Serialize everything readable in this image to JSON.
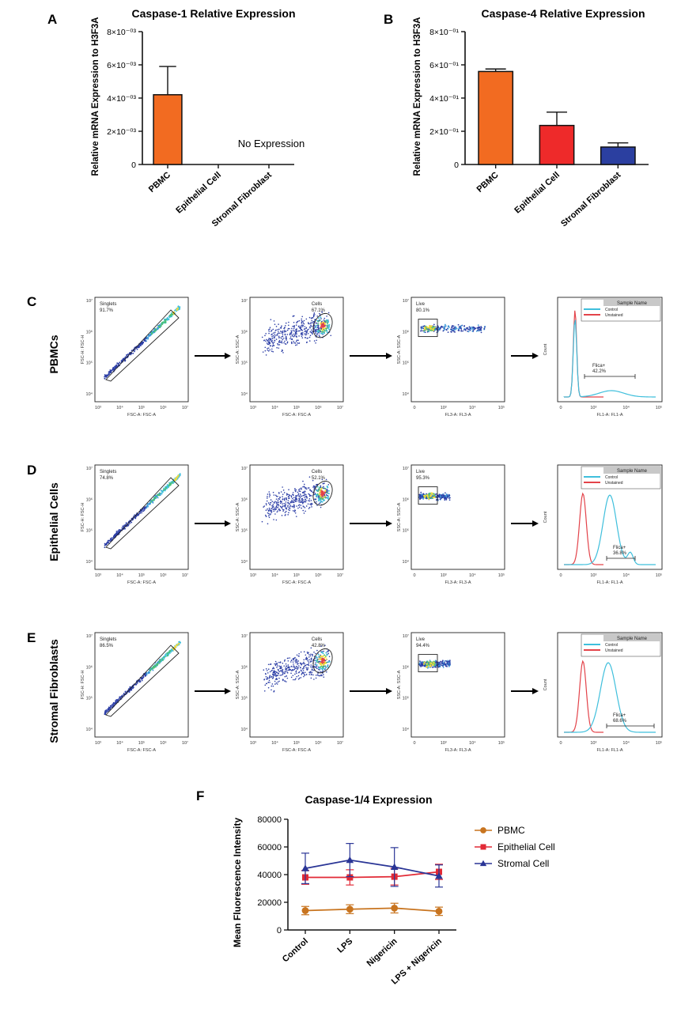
{
  "panel_letters": {
    "A": "A",
    "B": "B",
    "C": "C",
    "D": "D",
    "E": "E",
    "F": "F"
  },
  "colors": {
    "pbmc_bar": "#f26b21",
    "epithelial_bar": "#ee2a2a",
    "stromal_bar": "#2b3fa0",
    "pbmc_line": "#c8741f",
    "epithelial_line": "#e22a36",
    "stromal_line": "#2a3596",
    "control_hist": "#3fbfdc",
    "unstained_hist": "#e3434a",
    "scatter_blue": "#2c3ea6",
    "gate": "#222222"
  },
  "chart_data": [
    {
      "id": "A",
      "type": "bar",
      "title": "Caspase-1 Relative Expression",
      "ylabel": "Relative mRNA Expression to H3F3A",
      "xlabel": "",
      "categories": [
        "PBMC",
        "Epithelial Cell",
        "Stromal Fibroblast"
      ],
      "values": [
        0.0042,
        0,
        0
      ],
      "errors": [
        0.0017,
        0,
        0
      ],
      "ylim": [
        0,
        0.008
      ],
      "yticks": [
        0,
        0.002,
        0.004,
        0.006,
        0.008
      ],
      "ytick_labels": [
        "0",
        "2×10⁻⁰³",
        "4×10⁻⁰³",
        "6×10⁻⁰³",
        "8×10⁻⁰³"
      ],
      "annotation": "No Expression"
    },
    {
      "id": "B",
      "type": "bar",
      "title": "Caspase-4 Relative Expression",
      "ylabel": "Relative mRNA Expression to H3F3A",
      "xlabel": "",
      "categories": [
        "PBMC",
        "Epithelial Cell",
        "Stromal Fibroblast"
      ],
      "values": [
        0.56,
        0.235,
        0.105
      ],
      "errors": [
        0.015,
        0.08,
        0.025
      ],
      "ylim": [
        0,
        0.8
      ],
      "yticks": [
        0,
        0.2,
        0.4,
        0.6,
        0.8
      ],
      "ytick_labels": [
        "0",
        "2×10⁻⁰¹",
        "4×10⁻⁰¹",
        "6×10⁻⁰¹",
        "8×10⁻⁰¹"
      ]
    },
    {
      "id": "F",
      "type": "line",
      "title": "Caspase-1/4 Expression",
      "ylabel": "Mean Fluorescence Intensity",
      "xlabel": "",
      "categories": [
        "Control",
        "LPS",
        "Nigericin",
        "LPS + Nigericin"
      ],
      "ylim": [
        0,
        80000
      ],
      "yticks": [
        0,
        20000,
        40000,
        60000,
        80000
      ],
      "series": [
        {
          "name": "PBMC",
          "marker": "circle",
          "values": [
            14000,
            15000,
            15800,
            13500
          ],
          "errors": [
            3000,
            3200,
            3500,
            3000
          ]
        },
        {
          "name": "Epithelial Cell",
          "marker": "square",
          "values": [
            38000,
            38000,
            38500,
            42000
          ],
          "errors": [
            5000,
            5500,
            6000,
            5500
          ]
        },
        {
          "name": "Stromal Cell",
          "marker": "triangle",
          "values": [
            44500,
            50500,
            45500,
            39000
          ],
          "errors": [
            11000,
            12000,
            14000,
            8000
          ]
        }
      ]
    }
  ],
  "flow": {
    "rows": [
      {
        "label": "PBMCs",
        "gates": [
          {
            "name": "Singlets",
            "pct": "91.7%",
            "xaxis": "FSC-A: FSC-A",
            "yaxis": "FSC-H: FSC-H"
          },
          {
            "name": "Cells",
            "pct": "67.1%",
            "xaxis": "FSC-A: FSC-A",
            "yaxis": "SSC-A: SSC-A"
          },
          {
            "name": "Live",
            "pct": "80.1%",
            "xaxis": "FL3-A: FL3-A",
            "yaxis": "SSC-A: SSC-A"
          }
        ],
        "hist": {
          "gate_label": "Flica+",
          "pct": "42.2%",
          "xaxis": "FL1-A: FL1-A",
          "yaxis": "Count"
        }
      },
      {
        "label": "Epithelial Cells",
        "gates": [
          {
            "name": "Singlets",
            "pct": "74.8%",
            "xaxis": "FSC-A: FSC-A",
            "yaxis": "FSC-H: FSC-H"
          },
          {
            "name": "Cells",
            "pct": "52.1%",
            "xaxis": "FSC-A: FSC-A",
            "yaxis": "SSC-A: SSC-A"
          },
          {
            "name": "Live",
            "pct": "95.3%",
            "xaxis": "FL3-A: FL3-A",
            "yaxis": "SSC-A: SSC-A"
          }
        ],
        "hist": {
          "gate_label": "Flica+",
          "pct": "36.8%",
          "xaxis": "FL1-A: FL1-A",
          "yaxis": "Count"
        }
      },
      {
        "label": "Stromal Fibroblasts",
        "gates": [
          {
            "name": "Singlets",
            "pct": "86.5%",
            "xaxis": "FSC-A: FSC-A",
            "yaxis": "FSC-H: FSC-H"
          },
          {
            "name": "Cells",
            "pct": "42.8%",
            "xaxis": "FSC-A: FSC-A",
            "yaxis": "SSC-A: SSC-A"
          },
          {
            "name": "Live",
            "pct": "94.4%",
            "xaxis": "FL3-A: FL3-A",
            "yaxis": "SSC-A: SSC-A"
          }
        ],
        "hist": {
          "gate_label": "Flica+",
          "pct": "68.6%",
          "xaxis": "FL1-A: FL1-A",
          "yaxis": "Count"
        }
      }
    ],
    "hist_legend": {
      "header": "Sample Name",
      "items": [
        "Control",
        "Unstained"
      ]
    },
    "ticks_log": [
      "10³",
      "10⁴",
      "10⁵",
      "10⁶",
      "10⁷"
    ],
    "ticks_fl": [
      "0",
      "10³",
      "10⁴",
      "10⁵"
    ],
    "ticks_y": [
      "10⁴",
      "10⁵",
      "10⁶",
      "10⁷"
    ]
  }
}
